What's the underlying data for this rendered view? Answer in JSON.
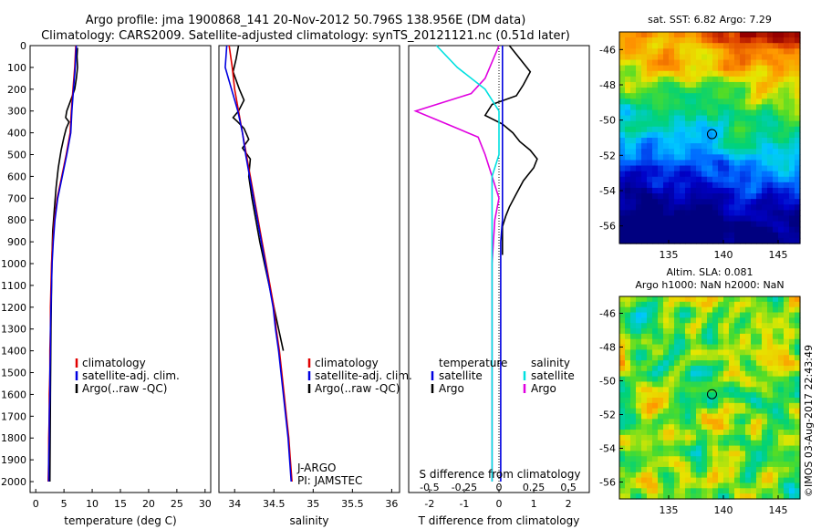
{
  "title_line1": "Argo profile: jma 1900868_141 20-Nov-2012 50.796S 138.956E (DM data)",
  "title_line2": "Climatology: CARS2009. Satellite-adjusted climatology: synTS_20121121.nc (0.51d later)",
  "credit": "©IMOS 03-Aug-2017 22:43:49",
  "colors": {
    "climatology": "#e00000",
    "satellite": "#0000e0",
    "argo": "#000000",
    "t_satellite": "#0000e0",
    "s_satellite": "#00e0e0",
    "s_argo": "#e000e0"
  },
  "chart_data": [
    {
      "type": "line",
      "id": "temperature",
      "xlabel": "temperature (deg C)",
      "ylabel": "",
      "xlim": [
        -1,
        31
      ],
      "ylim": [
        2050,
        0
      ],
      "xticks": [
        "0",
        "5",
        "10",
        "15",
        "20",
        "25",
        "30"
      ],
      "yticks": [
        "0",
        "100",
        "200",
        "300",
        "400",
        "500",
        "600",
        "700",
        "800",
        "900",
        "1000",
        "1100",
        "1200",
        "1300",
        "1400",
        "1500",
        "1600",
        "1700",
        "1800",
        "1900",
        "2000"
      ],
      "legend": [
        "climatology",
        "satellite-adj. clim.",
        "Argo(..raw -QC)"
      ],
      "series": [
        {
          "name": "climatology",
          "x": [
            7.1,
            6.9,
            6.6,
            6.3,
            6.1,
            5.4,
            4.6,
            3.8,
            3.3,
            3.0,
            2.8,
            2.7,
            2.6,
            2.6,
            2.5,
            2.5,
            2.4,
            2.4,
            2.3,
            2.3,
            2.2
          ],
          "y": [
            0,
            100,
            200,
            300,
            400,
            500,
            600,
            700,
            800,
            900,
            1000,
            1100,
            1200,
            1300,
            1400,
            1500,
            1600,
            1700,
            1800,
            1900,
            2000
          ]
        },
        {
          "name": "satellite-adj. clim.",
          "x": [
            7.2,
            7.0,
            6.7,
            6.4,
            6.2,
            5.5,
            4.7,
            3.9,
            3.4,
            3.1,
            2.9,
            2.8,
            2.7,
            2.6,
            2.6,
            2.5,
            2.5,
            2.4,
            2.4,
            2.3,
            2.3
          ],
          "y": [
            0,
            100,
            200,
            300,
            400,
            500,
            600,
            700,
            800,
            900,
            1000,
            1100,
            1200,
            1300,
            1400,
            1500,
            1600,
            1700,
            1800,
            1900,
            2000
          ]
        },
        {
          "name": "Argo(..raw -QC)",
          "x": [
            7.4,
            7.3,
            7.4,
            7.2,
            6.9,
            6.2,
            5.5,
            5.3,
            5.9,
            5.4,
            5.0,
            4.5,
            4.0,
            3.6,
            3.3,
            3.0,
            2.9,
            2.8,
            2.7,
            2.6,
            2.5
          ],
          "y": [
            10,
            50,
            100,
            150,
            200,
            250,
            300,
            330,
            350,
            380,
            420,
            480,
            560,
            650,
            750,
            850,
            950,
            1100,
            1300,
            1600,
            2000
          ]
        }
      ],
      "annotations": []
    },
    {
      "type": "line",
      "id": "salinity",
      "xlabel": "salinity",
      "ylabel": "",
      "xlim": [
        33.8,
        36.1
      ],
      "ylim": [
        2050,
        0
      ],
      "xticks": [
        "34",
        "34.5",
        "35",
        "35.5",
        "36"
      ],
      "legend": [
        "climatology",
        "satellite-adj. clim.",
        "Argo(..raw -QC)"
      ],
      "annotations": [
        "J-ARGO",
        "PI: JAMSTEC"
      ],
      "series": [
        {
          "name": "climatology",
          "x": [
            33.93,
            33.97,
            34.0,
            34.05,
            34.1,
            34.15,
            34.2,
            34.25,
            34.3,
            34.35,
            34.4,
            34.45,
            34.5,
            34.53,
            34.57,
            34.6,
            34.63,
            34.66,
            34.69,
            34.71,
            34.73
          ],
          "y": [
            0,
            100,
            200,
            300,
            400,
            500,
            600,
            700,
            800,
            900,
            1000,
            1100,
            1200,
            1300,
            1400,
            1500,
            1600,
            1700,
            1800,
            1900,
            2000
          ]
        },
        {
          "name": "satellite-adj. clim.",
          "x": [
            33.9,
            33.88,
            33.96,
            34.04,
            34.1,
            34.14,
            34.19,
            34.24,
            34.29,
            34.34,
            34.39,
            34.44,
            34.49,
            34.52,
            34.56,
            34.59,
            34.62,
            34.65,
            34.68,
            34.7,
            34.72
          ],
          "y": [
            0,
            100,
            200,
            300,
            400,
            500,
            600,
            700,
            800,
            900,
            1000,
            1100,
            1200,
            1300,
            1400,
            1500,
            1600,
            1700,
            1800,
            1900,
            2000
          ]
        },
        {
          "name": "Argo(..raw -QC)",
          "x": [
            34.05,
            34.02,
            33.98,
            34.06,
            34.12,
            34.05,
            33.98,
            34.04,
            34.12,
            34.18,
            34.1,
            34.2,
            34.18,
            34.22,
            34.27,
            34.32,
            34.38,
            34.44,
            34.5,
            34.56,
            34.62
          ],
          "y": [
            0,
            60,
            120,
            200,
            250,
            300,
            330,
            350,
            380,
            430,
            470,
            520,
            600,
            700,
            800,
            900,
            1000,
            1100,
            1200,
            1300,
            1400
          ]
        }
      ]
    },
    {
      "type": "line",
      "id": "differences",
      "xlabel": "T difference from climatology",
      "ylabel": "",
      "top_axis_label": "S difference from climatology",
      "xlim": [
        -2.6,
        2.6
      ],
      "ylim": [
        2050,
        0
      ],
      "xticks": [
        "-2",
        "-1",
        "0",
        "1",
        "2"
      ],
      "top_xticks": [
        "-0.5",
        "-0.25",
        "0",
        "0.25",
        "0.5"
      ],
      "legend": [
        "temperature",
        "satellite",
        "Argo",
        "salinity",
        "satellite",
        "Argo"
      ],
      "series": [
        {
          "name": "satellite",
          "x": [
            0.1,
            0.1,
            0.1,
            0.1,
            0.1,
            0.1,
            0.1,
            0.1,
            0.1,
            0.05,
            0.05,
            0.05,
            0.05,
            0.05,
            0.05,
            0.05,
            0.05,
            0.05,
            0.05,
            0.05,
            0.05
          ],
          "y": [
            0,
            100,
            200,
            300,
            400,
            500,
            600,
            700,
            800,
            900,
            1000,
            1100,
            1200,
            1300,
            1400,
            1500,
            1600,
            1700,
            1800,
            1900,
            2000
          ]
        },
        {
          "name": "Argo",
          "x": [
            0.3,
            0.6,
            0.9,
            0.7,
            0.5,
            -0.2,
            -0.4,
            0.1,
            0.4,
            0.6,
            0.9,
            1.1,
            1.0,
            0.7,
            0.5,
            0.3,
            0.2,
            0.1,
            0.1,
            0.1,
            0.1
          ],
          "y": [
            0,
            60,
            120,
            180,
            230,
            270,
            320,
            360,
            400,
            440,
            480,
            520,
            560,
            620,
            680,
            740,
            780,
            830,
            880,
            920,
            960
          ]
        },
        {
          "name": "satellite",
          "x": [
            -0.45,
            -0.3,
            -0.1,
            0.0,
            0.0,
            0.0,
            -0.05,
            -0.05,
            -0.05,
            -0.05,
            -0.05,
            -0.05,
            -0.05,
            -0.05,
            -0.05,
            -0.05,
            -0.05,
            -0.05,
            -0.05,
            -0.05,
            -0.05
          ],
          "y": [
            0,
            100,
            200,
            300,
            400,
            500,
            600,
            700,
            800,
            900,
            1000,
            1100,
            1200,
            1300,
            1400,
            1500,
            1600,
            1700,
            1800,
            1900,
            2000
          ]
        },
        {
          "name": "Argo",
          "x": [
            0.0,
            -0.1,
            -0.2,
            -0.6,
            -0.45,
            -0.3,
            -0.15,
            -0.1,
            -0.05,
            0.0,
            -0.03,
            -0.05,
            -0.05,
            -0.05,
            -0.05,
            -0.05
          ],
          "y": [
            0,
            150,
            220,
            300,
            340,
            380,
            420,
            500,
            600,
            700,
            800,
            1000,
            1200,
            1400,
            1600,
            2000
          ]
        }
      ]
    },
    {
      "type": "heatmap",
      "id": "sst_map",
      "title": "sat. SST: 6.82  Argo: 7.29",
      "xticks": [
        "135",
        "140",
        "145"
      ],
      "yticks": [
        "-46",
        "-48",
        "-50",
        "-52",
        "-54",
        "-56"
      ],
      "xlim": [
        130.5,
        147
      ],
      "ylim": [
        -57,
        -45
      ],
      "marker": {
        "lon": 138.956,
        "lat": -50.796
      }
    },
    {
      "type": "heatmap",
      "id": "sla_map",
      "title": "Altim. SLA: 0.081",
      "subtitle": "Argo h1000: NaN h2000: NaN",
      "xticks": [
        "135",
        "140",
        "145"
      ],
      "yticks": [
        "-46",
        "-48",
        "-50",
        "-52",
        "-54",
        "-56"
      ],
      "xlim": [
        130.5,
        147
      ],
      "ylim": [
        -57,
        -45
      ],
      "marker": {
        "lon": 138.956,
        "lat": -50.796
      }
    }
  ]
}
